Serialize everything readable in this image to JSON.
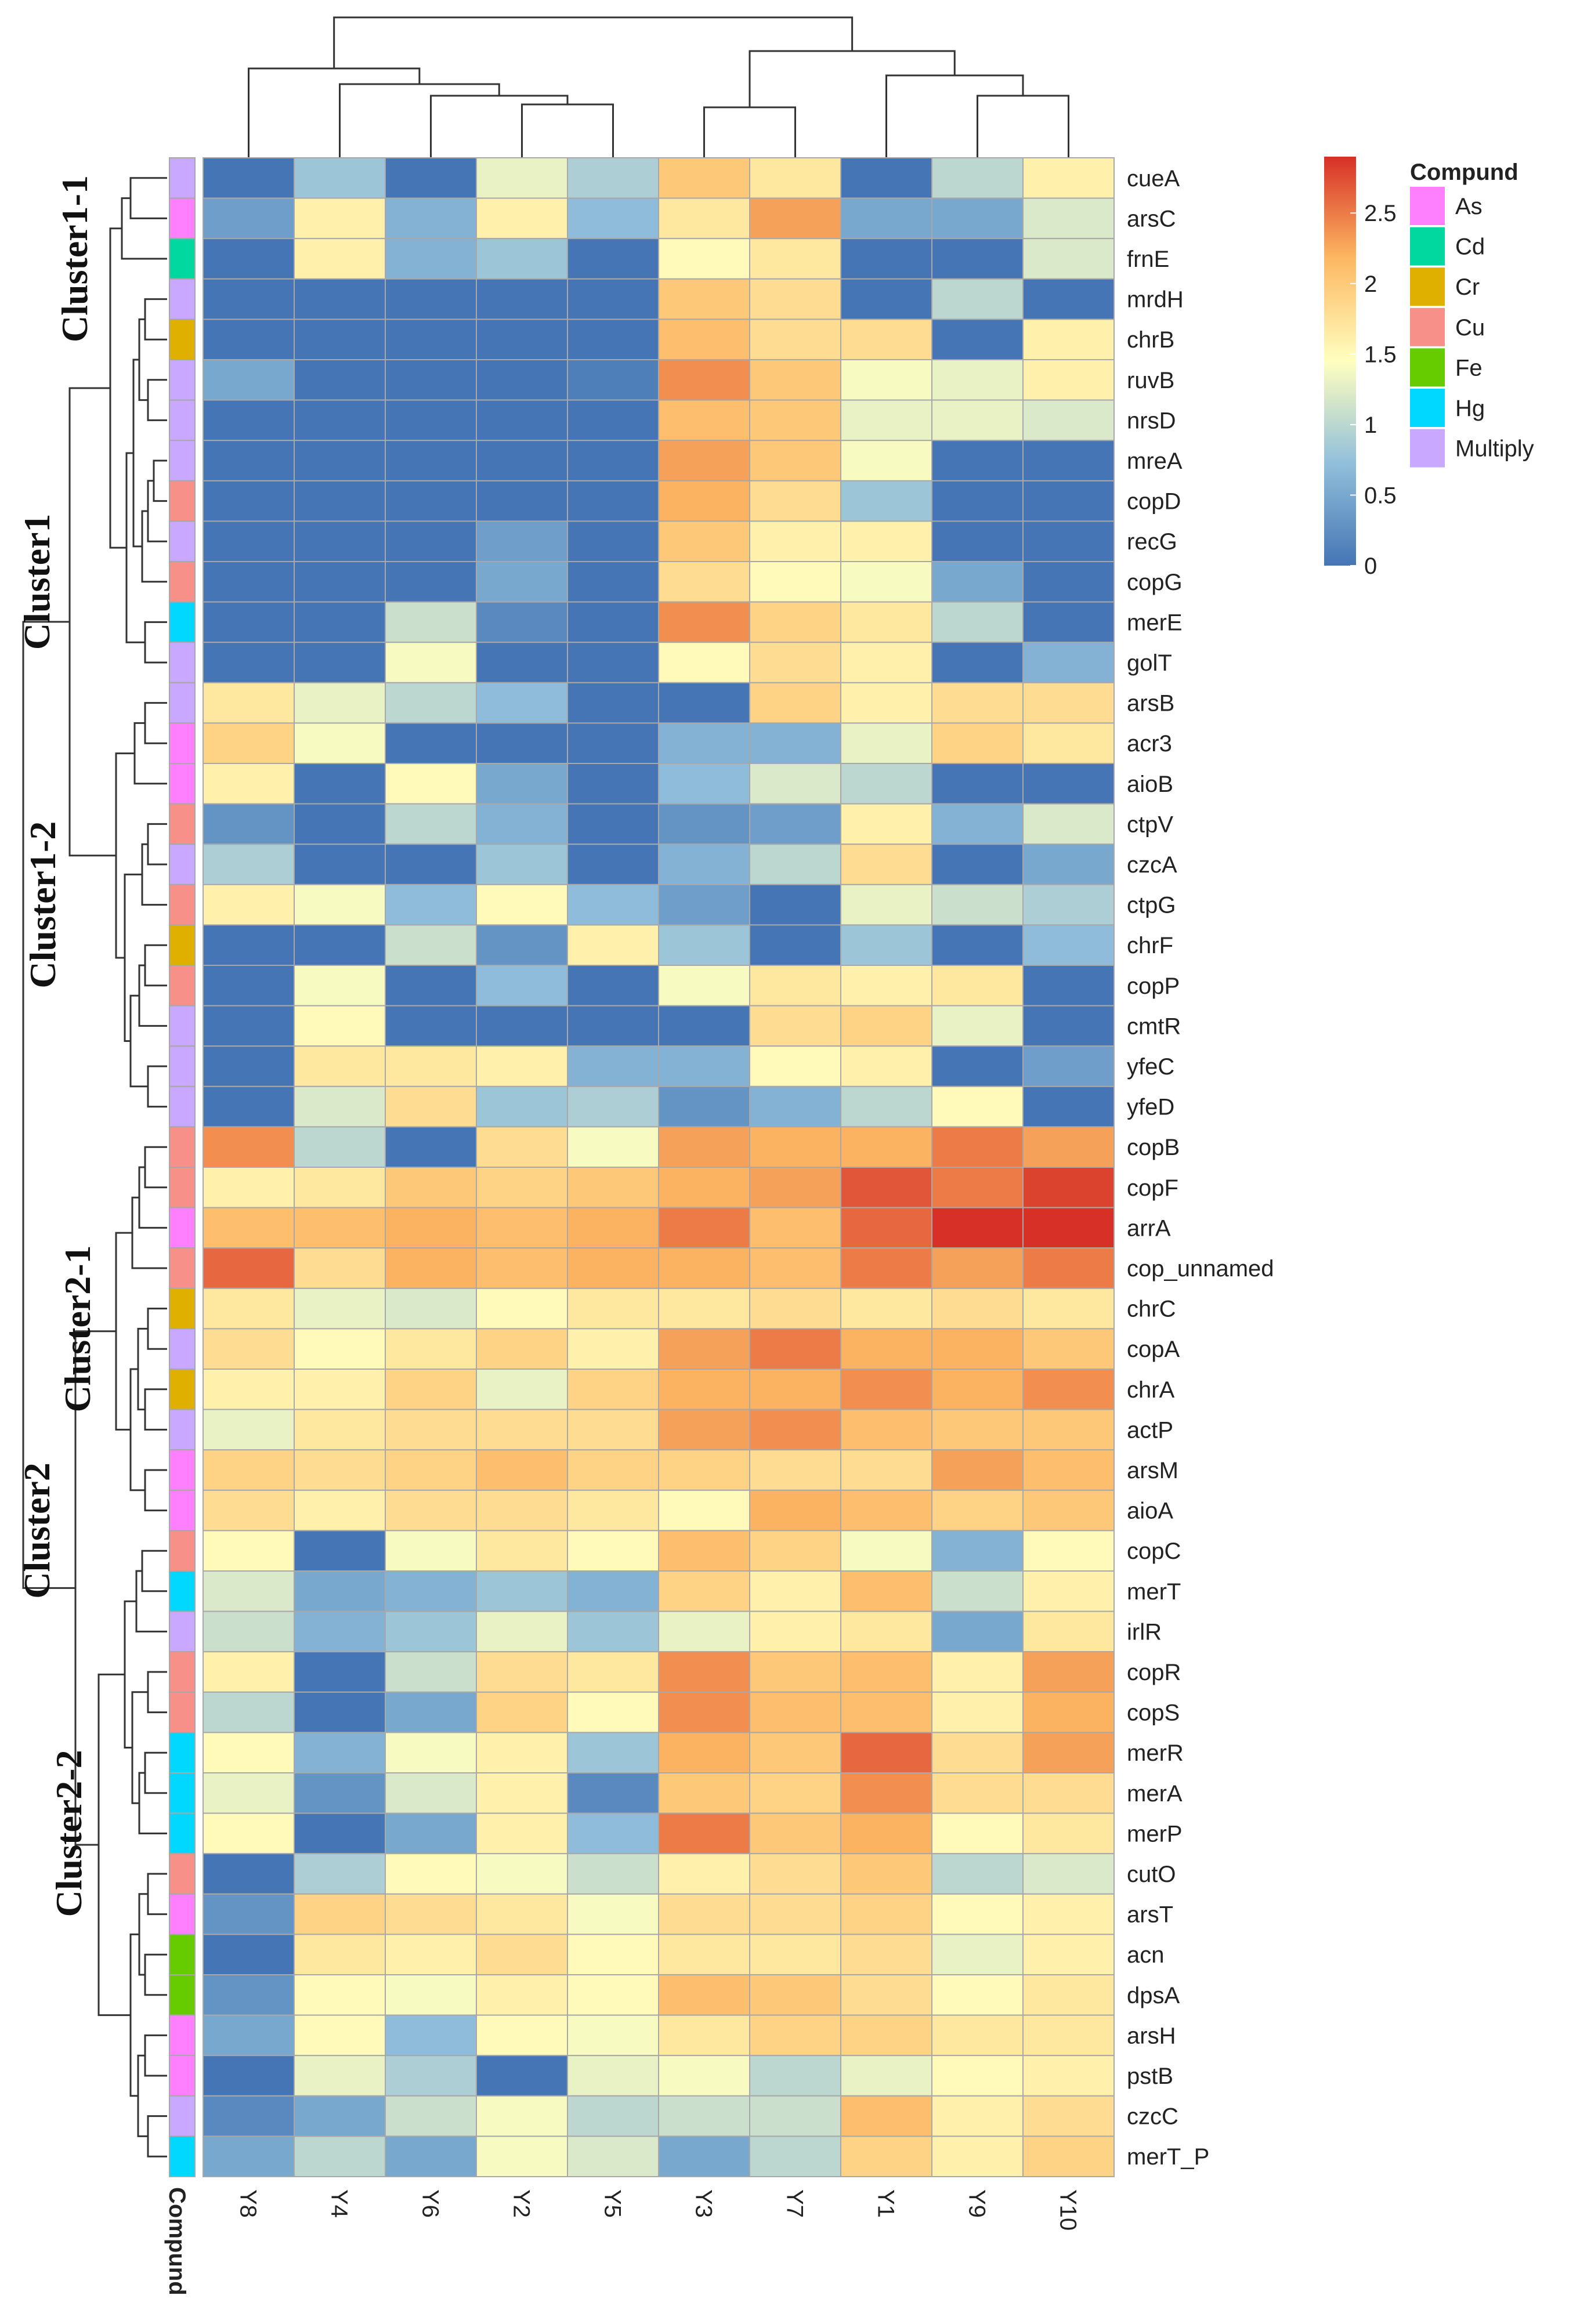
{
  "chart_data": {
    "type": "heatmap",
    "columns": [
      "Y8",
      "Y4",
      "Y6",
      "Y2",
      "Y5",
      "Y3",
      "Y7",
      "Y1",
      "Y9",
      "Y10"
    ],
    "rows": [
      {
        "gene": "cueA",
        "group": "Multiply",
        "values": [
          0,
          0.8,
          0,
          1.3,
          0.9,
          2.0,
          1.7,
          0,
          1.0,
          1.6
        ]
      },
      {
        "gene": "arsC",
        "group": "As",
        "values": [
          0.4,
          1.6,
          0.6,
          1.6,
          0.7,
          1.7,
          2.3,
          0.5,
          0.5,
          1.2
        ]
      },
      {
        "gene": "frnE",
        "group": "Cd",
        "values": [
          0,
          1.6,
          0.6,
          0.8,
          0,
          1.5,
          1.7,
          0,
          0,
          1.2
        ]
      },
      {
        "gene": "mrdH",
        "group": "Multiply",
        "values": [
          0,
          0,
          0,
          0,
          0,
          2.0,
          1.8,
          0,
          1.0,
          0
        ]
      },
      {
        "gene": "chrB",
        "group": "Cr",
        "values": [
          0,
          0,
          0,
          0,
          0,
          2.1,
          1.8,
          1.8,
          0,
          1.6
        ]
      },
      {
        "gene": "ruvB",
        "group": "Multiply",
        "values": [
          0.5,
          0,
          0,
          0,
          0.1,
          2.4,
          2.0,
          1.4,
          1.3,
          1.6
        ]
      },
      {
        "gene": "nrsD",
        "group": "Multiply",
        "values": [
          0,
          0,
          0,
          0,
          0,
          2.1,
          2.0,
          1.3,
          1.3,
          1.2
        ]
      },
      {
        "gene": "mreA",
        "group": "Multiply",
        "values": [
          0,
          0,
          0,
          0,
          0,
          2.3,
          2.0,
          1.4,
          0,
          0
        ]
      },
      {
        "gene": "copD",
        "group": "Cu",
        "values": [
          0,
          0,
          0,
          0,
          0,
          2.2,
          1.8,
          0.8,
          0,
          0
        ]
      },
      {
        "gene": "recG",
        "group": "Multiply",
        "values": [
          0,
          0,
          0,
          0.4,
          0,
          2.0,
          1.6,
          1.6,
          0,
          0
        ]
      },
      {
        "gene": "copG",
        "group": "Cu",
        "values": [
          0,
          0,
          0,
          0.5,
          0,
          1.8,
          1.5,
          1.4,
          0.5,
          0
        ]
      },
      {
        "gene": "merE",
        "group": "Hg",
        "values": [
          0,
          0,
          1.1,
          0.2,
          0,
          2.4,
          1.9,
          1.7,
          1.0,
          0
        ]
      },
      {
        "gene": "golT",
        "group": "Multiply",
        "values": [
          0,
          0,
          1.4,
          0,
          0,
          1.5,
          1.8,
          1.6,
          0,
          0.6
        ]
      },
      {
        "gene": "arsB",
        "group": "Multiply",
        "values": [
          1.7,
          1.3,
          1.0,
          0.7,
          0,
          0,
          1.9,
          1.6,
          1.8,
          1.8
        ]
      },
      {
        "gene": "acr3",
        "group": "As",
        "values": [
          1.9,
          1.4,
          0,
          0,
          0,
          0.6,
          0.6,
          1.3,
          1.9,
          1.7
        ]
      },
      {
        "gene": "aioB",
        "group": "As",
        "values": [
          1.6,
          0,
          1.5,
          0.5,
          0,
          0.7,
          1.2,
          1.0,
          0,
          0
        ]
      },
      {
        "gene": "ctpV",
        "group": "Cu",
        "values": [
          0.3,
          0,
          1.0,
          0.6,
          0,
          0.3,
          0.4,
          1.6,
          0.6,
          1.2
        ]
      },
      {
        "gene": "czcA",
        "group": "Multiply",
        "values": [
          0.9,
          0,
          0,
          0.8,
          0,
          0.6,
          1.0,
          1.8,
          0,
          0.5
        ]
      },
      {
        "gene": "ctpG",
        "group": "Cu",
        "values": [
          1.6,
          1.4,
          0.7,
          1.5,
          0.7,
          0.4,
          0,
          1.3,
          1.1,
          0.9
        ]
      },
      {
        "gene": "chrF",
        "group": "Cr",
        "values": [
          0,
          0,
          1.1,
          0.3,
          1.6,
          0.8,
          0,
          0.8,
          0,
          0.7
        ]
      },
      {
        "gene": "copP",
        "group": "Cu",
        "values": [
          0,
          1.4,
          0,
          0.7,
          0,
          1.4,
          1.7,
          1.6,
          1.7,
          0
        ]
      },
      {
        "gene": "cmtR",
        "group": "Multiply",
        "values": [
          0,
          1.5,
          0,
          0,
          0,
          0,
          1.8,
          1.9,
          1.3,
          0
        ]
      },
      {
        "gene": "yfeC",
        "group": "Multiply",
        "values": [
          0,
          1.7,
          1.7,
          1.6,
          0.6,
          0.6,
          1.5,
          1.6,
          0,
          0.4
        ]
      },
      {
        "gene": "yfeD",
        "group": "Multiply",
        "values": [
          0,
          1.2,
          1.8,
          0.8,
          0.9,
          0.3,
          0.6,
          1.0,
          1.5,
          0
        ]
      },
      {
        "gene": "copB",
        "group": "Cu",
        "values": [
          2.4,
          1.0,
          0,
          1.8,
          1.4,
          2.3,
          2.2,
          2.2,
          2.5,
          2.3
        ]
      },
      {
        "gene": "copF",
        "group": "Cu",
        "values": [
          1.6,
          1.7,
          2.0,
          1.9,
          2.0,
          2.2,
          2.3,
          2.7,
          2.5,
          2.8
        ]
      },
      {
        "gene": "arrA",
        "group": "As",
        "values": [
          2.1,
          2.1,
          2.2,
          2.1,
          2.2,
          2.5,
          2.1,
          2.6,
          2.9,
          2.9
        ]
      },
      {
        "gene": "cop_unnamed",
        "group": "Cu",
        "values": [
          2.6,
          1.8,
          2.2,
          2.1,
          2.2,
          2.2,
          2.1,
          2.5,
          2.3,
          2.5
        ]
      },
      {
        "gene": "chrC",
        "group": "Cr",
        "values": [
          1.7,
          1.3,
          1.2,
          1.5,
          1.7,
          1.7,
          1.8,
          1.7,
          1.8,
          1.7
        ]
      },
      {
        "gene": "copA",
        "group": "Multiply",
        "values": [
          1.8,
          1.5,
          1.7,
          1.9,
          1.6,
          2.3,
          2.5,
          2.2,
          2.2,
          2.0
        ]
      },
      {
        "gene": "chrA",
        "group": "Cr",
        "values": [
          1.6,
          1.6,
          1.9,
          1.3,
          1.9,
          2.2,
          2.2,
          2.4,
          2.2,
          2.4
        ]
      },
      {
        "gene": "actP",
        "group": "Multiply",
        "values": [
          1.3,
          1.7,
          1.8,
          1.8,
          1.8,
          2.3,
          2.4,
          2.1,
          2.0,
          2.0
        ]
      },
      {
        "gene": "arsM",
        "group": "As",
        "values": [
          1.9,
          1.8,
          1.9,
          2.1,
          1.9,
          1.9,
          1.8,
          1.8,
          2.3,
          2.1
        ]
      },
      {
        "gene": "aioA",
        "group": "As",
        "values": [
          1.8,
          1.6,
          1.8,
          1.8,
          1.7,
          1.5,
          2.2,
          2.1,
          1.9,
          2.0
        ]
      },
      {
        "gene": "copC",
        "group": "Cu",
        "values": [
          1.5,
          0,
          1.4,
          1.7,
          1.5,
          2.1,
          1.9,
          1.4,
          0.6,
          1.5
        ]
      },
      {
        "gene": "merT",
        "group": "Hg",
        "values": [
          1.2,
          0.5,
          0.6,
          0.8,
          0.6,
          1.9,
          1.6,
          2.1,
          1.1,
          1.6
        ]
      },
      {
        "gene": "irlR",
        "group": "Multiply",
        "values": [
          1.1,
          0.6,
          0.8,
          1.3,
          0.8,
          1.3,
          1.6,
          1.7,
          0.5,
          1.7
        ]
      },
      {
        "gene": "copR",
        "group": "Cu",
        "values": [
          1.6,
          0,
          1.1,
          1.8,
          1.7,
          2.4,
          2.0,
          2.1,
          1.6,
          2.3
        ]
      },
      {
        "gene": "copS",
        "group": "Cu",
        "values": [
          1.0,
          0,
          0.5,
          1.9,
          1.5,
          2.4,
          2.1,
          2.1,
          1.6,
          2.2
        ]
      },
      {
        "gene": "merR",
        "group": "Hg",
        "values": [
          1.5,
          0.6,
          1.4,
          1.6,
          0.8,
          2.2,
          2.0,
          2.6,
          1.8,
          2.3
        ]
      },
      {
        "gene": "merA",
        "group": "Hg",
        "values": [
          1.3,
          0.3,
          1.2,
          1.6,
          0.2,
          2.0,
          1.9,
          2.4,
          1.8,
          1.8
        ]
      },
      {
        "gene": "merP",
        "group": "Hg",
        "values": [
          1.5,
          0,
          0.5,
          1.6,
          0.7,
          2.5,
          2.0,
          2.2,
          1.5,
          1.7
        ]
      },
      {
        "gene": "cutO",
        "group": "Cu",
        "values": [
          0,
          0.9,
          1.5,
          1.4,
          1.1,
          1.6,
          1.8,
          2.0,
          1.0,
          1.2
        ]
      },
      {
        "gene": "arsT",
        "group": "As",
        "values": [
          0.3,
          1.9,
          1.8,
          1.7,
          1.4,
          1.8,
          1.8,
          1.9,
          1.5,
          1.6
        ]
      },
      {
        "gene": "acn",
        "group": "Fe",
        "values": [
          0,
          1.7,
          1.6,
          1.8,
          1.5,
          1.7,
          1.7,
          1.8,
          1.3,
          1.6
        ]
      },
      {
        "gene": "dpsA",
        "group": "Fe",
        "values": [
          0.3,
          1.5,
          1.4,
          1.6,
          1.5,
          2.1,
          2.0,
          1.8,
          1.5,
          1.7
        ]
      },
      {
        "gene": "arsH",
        "group": "As",
        "values": [
          0.5,
          1.5,
          0.7,
          1.5,
          1.4,
          1.7,
          1.9,
          1.9,
          1.7,
          1.7
        ]
      },
      {
        "gene": "pstB",
        "group": "As",
        "values": [
          0,
          1.3,
          0.9,
          0,
          1.3,
          1.4,
          1.0,
          1.3,
          1.5,
          1.6
        ]
      },
      {
        "gene": "czcC",
        "group": "Multiply",
        "values": [
          0.2,
          0.5,
          1.1,
          1.4,
          1.0,
          1.1,
          1.1,
          2.1,
          1.6,
          1.8
        ]
      },
      {
        "gene": "merT_P",
        "group": "Hg",
        "values": [
          0.5,
          1.0,
          0.5,
          1.4,
          1.2,
          0.5,
          1.0,
          1.9,
          1.6,
          1.9
        ]
      }
    ],
    "scale": {
      "min": 0,
      "max": 2.9,
      "ticks": [
        "0",
        "0.5",
        "1",
        "1.5",
        "2",
        "2.5"
      ],
      "colors": [
        "#4575b4",
        "#91bfdb",
        "#ffffbf",
        "#fdb863",
        "#d73027"
      ]
    },
    "compound_legend": {
      "title": "Compund",
      "items": [
        {
          "label": "As",
          "color": "#ff80ff"
        },
        {
          "label": "Cd",
          "color": "#00d8a0"
        },
        {
          "label": "Cr",
          "color": "#e0b000"
        },
        {
          "label": "Cu",
          "color": "#f79088"
        },
        {
          "label": "Fe",
          "color": "#66cc00"
        },
        {
          "label": "Hg",
          "color": "#00d8ff"
        },
        {
          "label": "Multiply",
          "color": "#c9a8ff"
        }
      ]
    },
    "annotation_label": "Compund",
    "clusters": [
      "Cluster1-1",
      "Cluster1",
      "Cluster1-2",
      "Cluster2-1",
      "Cluster2",
      "Cluster2-2"
    ]
  }
}
